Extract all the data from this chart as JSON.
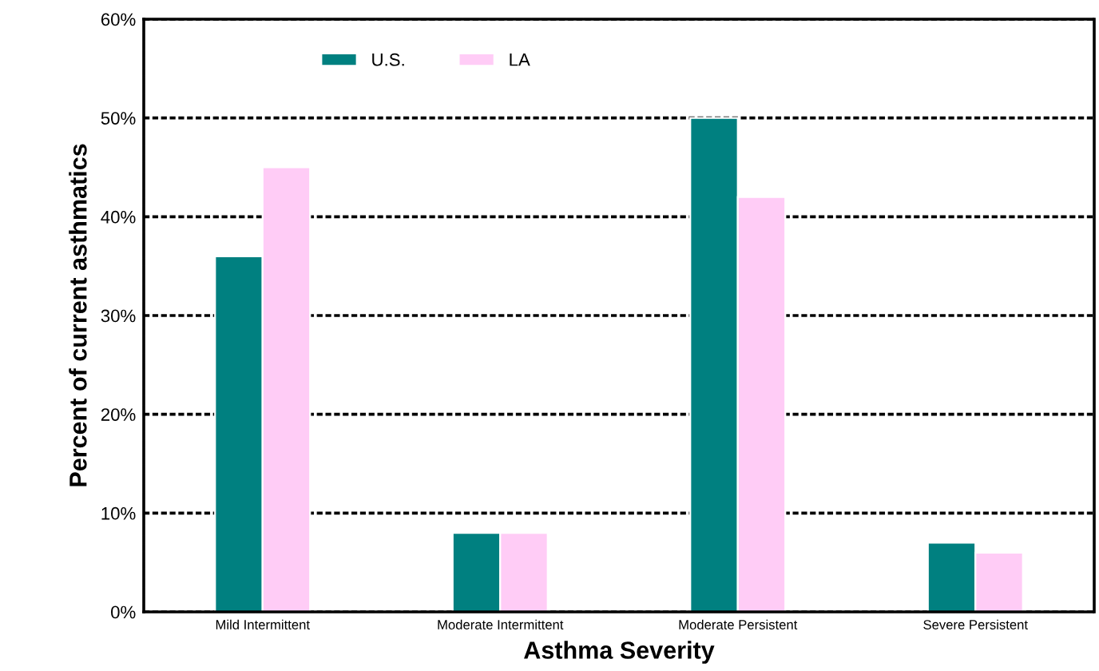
{
  "chart_data": {
    "type": "bar",
    "xlabel": "Asthma Severity",
    "ylabel": "Percent of current asthmatics",
    "categories": [
      "Mild Intermittent",
      "Moderate Intermittent",
      "Moderate Persistent",
      "Severe Persistent"
    ],
    "series": [
      {
        "name": "U.S.",
        "color": "#008080",
        "values": [
          36,
          8,
          50,
          7
        ]
      },
      {
        "name": "LA",
        "color": "#ffccf6",
        "values": [
          45,
          8,
          42,
          6
        ]
      }
    ],
    "ylim": [
      0,
      60
    ],
    "yticks": [
      {
        "value": 0,
        "label": "0%"
      },
      {
        "value": 10,
        "label": "10%"
      },
      {
        "value": 20,
        "label": "20%"
      },
      {
        "value": 30,
        "label": "30%"
      },
      {
        "value": 40,
        "label": "40%"
      },
      {
        "value": 50,
        "label": "50%"
      },
      {
        "value": 60,
        "label": "60%"
      }
    ],
    "grid": "y",
    "legend": "top left"
  }
}
